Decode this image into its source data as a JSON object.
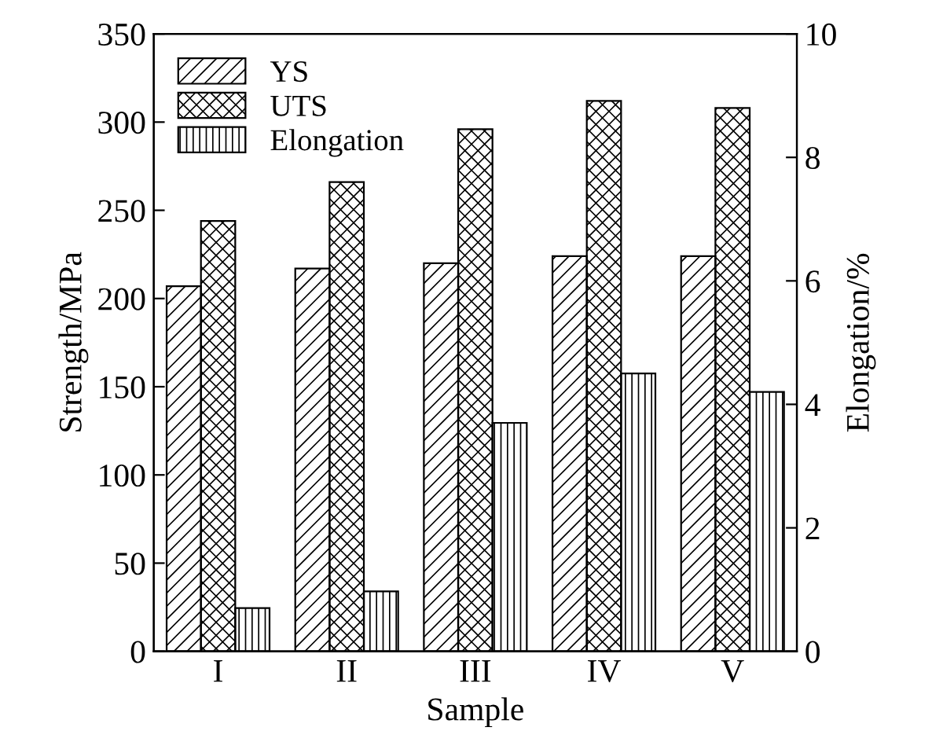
{
  "chart_data": {
    "type": "bar",
    "xlabel": "Sample",
    "ylabel": "Strength/MPa",
    "y2label": "Elongation/%",
    "categories": [
      "I",
      "II",
      "III",
      "IV",
      "V"
    ],
    "series": [
      {
        "name": "YS",
        "color": "#000000",
        "values": [
          207,
          217,
          220,
          224,
          224
        ]
      },
      {
        "name": "UTS",
        "color": "#000000",
        "values": [
          244,
          266,
          296,
          312,
          308
        ]
      },
      {
        "name": "Elongation",
        "color": "#000000",
        "axis": "y2",
        "values": [
          0.7,
          0.97,
          3.7,
          4.5,
          4.2
        ]
      }
    ],
    "ylim": [
      0,
      350
    ],
    "yticks": [
      0,
      50,
      100,
      150,
      200,
      250,
      300,
      350
    ],
    "y2lim": [
      0,
      10
    ],
    "y2ticks": [
      0,
      2,
      4,
      6,
      8,
      10
    ],
    "legend": "top left",
    "grid": false
  }
}
